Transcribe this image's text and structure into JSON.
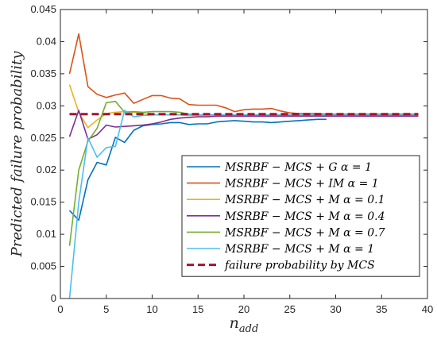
{
  "chart_data": {
    "type": "line",
    "xlabel_main": "n",
    "xlabel_sub": "add",
    "ylabel": "Predicted failure probability",
    "xlim": [
      0,
      40
    ],
    "ylim": [
      0,
      0.045
    ],
    "xticks": [
      0,
      5,
      10,
      15,
      20,
      25,
      30,
      35,
      40
    ],
    "yticks": [
      0,
      0.005,
      0.01,
      0.015,
      0.02,
      0.025,
      0.03,
      0.035,
      0.04,
      0.045
    ],
    "ytick_labels": [
      "0",
      "0.005",
      "0.01",
      "0.015",
      "0.02",
      "0.025",
      "0.03",
      "0.035",
      "0.04",
      "0.045"
    ],
    "grid": false,
    "legend_position": "bottom-right",
    "series": [
      {
        "name": "MSRBF − MCS + G α = 1",
        "color": "#0072BD",
        "dash": false,
        "x": [
          1,
          2,
          3,
          4,
          5,
          6,
          7,
          8,
          9,
          10,
          11,
          12,
          13,
          14,
          15,
          16,
          17,
          18,
          19,
          20,
          21,
          22,
          23,
          24,
          25,
          26,
          27,
          28,
          29
        ],
        "y": [
          0.0137,
          0.0122,
          0.0185,
          0.0212,
          0.0208,
          0.0251,
          0.0243,
          0.0262,
          0.0269,
          0.0271,
          0.0272,
          0.0274,
          0.0274,
          0.0271,
          0.0272,
          0.0272,
          0.0275,
          0.0276,
          0.0277,
          0.0276,
          0.0275,
          0.0275,
          0.0274,
          0.0275,
          0.0276,
          0.0277,
          0.0278,
          0.0279,
          0.0279
        ]
      },
      {
        "name": "MSRBF − MCS + IM α = 1",
        "color": "#D95319",
        "dash": false,
        "x": [
          1,
          2,
          3,
          4,
          5,
          6,
          7,
          8,
          9,
          10,
          11,
          12,
          13,
          14,
          15,
          16,
          17,
          18,
          19,
          20,
          21,
          22,
          23,
          24,
          25,
          26,
          27,
          28,
          29,
          30,
          31,
          32,
          33,
          34,
          35,
          36,
          37,
          38,
          39
        ],
        "y": [
          0.035,
          0.0412,
          0.033,
          0.0318,
          0.0313,
          0.0317,
          0.032,
          0.0304,
          0.031,
          0.0316,
          0.0316,
          0.0312,
          0.0311,
          0.0302,
          0.0301,
          0.0301,
          0.0301,
          0.0297,
          0.0291,
          0.0294,
          0.0295,
          0.0295,
          0.0296,
          0.0292,
          0.0289,
          0.0288,
          0.0288,
          0.0288,
          0.0287,
          0.0287,
          0.0287,
          0.0287,
          0.0287,
          0.0287,
          0.0287,
          0.0287,
          0.0287,
          0.0287,
          0.0287
        ]
      },
      {
        "name": "MSRBF − MCS + M α = 0.1",
        "color": "#EDB120",
        "dash": false,
        "x": [
          1,
          2,
          3,
          4,
          5,
          6,
          7,
          8,
          9,
          10,
          11,
          12,
          13,
          14,
          15,
          16,
          17,
          18,
          19,
          20,
          21,
          22,
          23,
          24,
          25,
          26,
          27,
          28,
          29,
          30,
          31,
          32,
          33,
          34,
          35,
          36,
          37,
          38,
          39
        ],
        "y": [
          0.0333,
          0.029,
          0.0266,
          0.0278,
          0.0288,
          0.029,
          0.0291,
          0.029,
          0.0288,
          0.0286,
          0.0286,
          0.0286,
          0.0286,
          0.0285,
          0.0285,
          0.0285,
          0.0286,
          0.0286,
          0.0286,
          0.0286,
          0.0286,
          0.0286,
          0.0286,
          0.0286,
          0.0286,
          0.0286,
          0.0286,
          0.0286,
          0.0286,
          0.0286,
          0.0286,
          0.0286,
          0.0286,
          0.0286,
          0.0286,
          0.0286,
          0.0286,
          0.0286,
          0.0286
        ]
      },
      {
        "name": "MSRBF − MCS + M α = 0.4",
        "color": "#7E2F8E",
        "dash": false,
        "x": [
          1,
          2,
          3,
          4,
          5,
          6,
          7,
          8,
          9,
          10,
          11,
          12,
          13,
          14,
          15,
          16,
          17,
          18,
          19,
          20,
          21,
          22,
          23,
          24,
          25,
          26,
          27,
          28,
          29,
          30,
          31,
          32,
          33,
          34,
          35,
          36,
          37,
          38,
          39
        ],
        "y": [
          0.0252,
          0.0293,
          0.0248,
          0.0255,
          0.027,
          0.0267,
          0.0268,
          0.0269,
          0.027,
          0.0272,
          0.0275,
          0.0279,
          0.0281,
          0.0282,
          0.0283,
          0.0283,
          0.0284,
          0.0284,
          0.0284,
          0.0284,
          0.0284,
          0.0284,
          0.0284,
          0.0284,
          0.0284,
          0.0284,
          0.0284,
          0.0284,
          0.0284,
          0.0284,
          0.0284,
          0.0284,
          0.0284,
          0.0284,
          0.0284,
          0.0284,
          0.0284,
          0.0284,
          0.0284
        ]
      },
      {
        "name": "MSRBF − MCS + M α = 0.7",
        "color": "#77AC30",
        "dash": false,
        "x": [
          1,
          2,
          3,
          4,
          5,
          6,
          7,
          8,
          9,
          10,
          11,
          12,
          13,
          14,
          15,
          16,
          17,
          18,
          19,
          20,
          21,
          22,
          23,
          24,
          25,
          26,
          27,
          28,
          29,
          30,
          31,
          32,
          33,
          34,
          35,
          36,
          37,
          38,
          39
        ],
        "y": [
          0.0082,
          0.02,
          0.0245,
          0.0265,
          0.0305,
          0.0307,
          0.029,
          0.0291,
          0.029,
          0.0291,
          0.0291,
          0.0291,
          0.029,
          0.0287,
          0.0286,
          0.0286,
          0.0286,
          0.0286,
          0.0286,
          0.0286,
          0.0286,
          0.0286,
          0.0286,
          0.0286,
          0.0286,
          0.0286,
          0.0286,
          0.0286,
          0.0286,
          0.0286,
          0.0286,
          0.0286,
          0.0286,
          0.0286,
          0.0286,
          0.0286,
          0.0286,
          0.0286,
          0.0286
        ]
      },
      {
        "name": "MSRBF − MCS + M α = 1",
        "color": "#4DBEEE",
        "dash": false,
        "x": [
          1,
          2,
          3,
          4,
          5,
          6,
          7,
          8,
          9,
          10,
          11,
          12,
          13,
          14,
          15,
          16,
          17,
          18,
          19,
          20,
          21,
          22,
          23,
          24,
          25,
          26,
          27,
          28,
          29,
          30,
          31,
          32,
          33,
          34,
          35,
          36,
          37,
          38,
          39
        ],
        "y": [
          0.0,
          0.015,
          0.025,
          0.022,
          0.0235,
          0.0237,
          0.0293,
          0.0283,
          0.0285,
          0.0286,
          0.0286,
          0.0286,
          0.0286,
          0.0286,
          0.0286,
          0.0286,
          0.0286,
          0.0286,
          0.0286,
          0.0286,
          0.0286,
          0.0286,
          0.0286,
          0.0286,
          0.0286,
          0.0286,
          0.0286,
          0.0286,
          0.0286,
          0.0286,
          0.0286,
          0.0286,
          0.0286,
          0.0286,
          0.0286,
          0.0286,
          0.0286,
          0.0286,
          0.0286
        ]
      },
      {
        "name": "failure probability by MCS",
        "color": "#A2142F",
        "dash": true,
        "x": [
          1,
          39
        ],
        "y": [
          0.0287,
          0.0287
        ]
      }
    ]
  }
}
